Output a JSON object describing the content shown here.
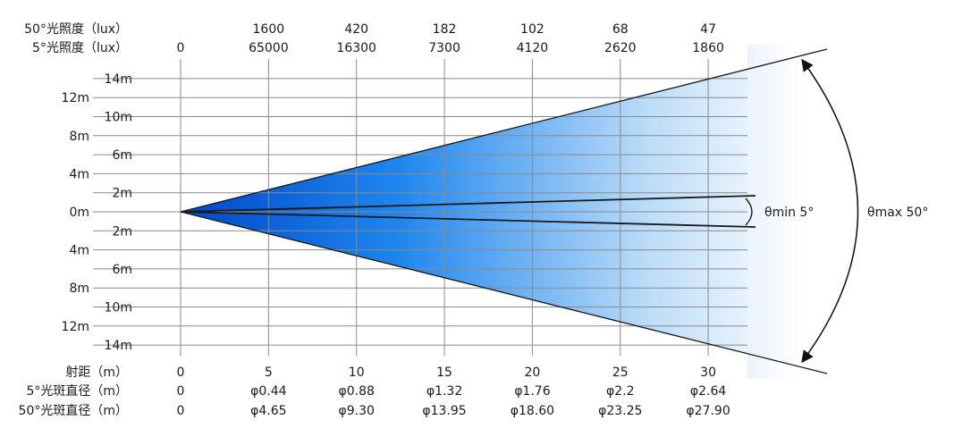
{
  "top_rows": [
    {
      "label": "50°光照度（lux）",
      "values": [
        "",
        "1600",
        "420",
        "182",
        "102",
        "68",
        "47"
      ]
    },
    {
      "label": "5°光照度（lux）",
      "values": [
        "0",
        "65000",
        "16300",
        "7300",
        "4120",
        "2620",
        "1860"
      ]
    }
  ],
  "y_ticks": [
    {
      "label": "14m",
      "value": 14
    },
    {
      "label": "12m",
      "value": 12
    },
    {
      "label": "10m",
      "value": 10
    },
    {
      "label": "8m",
      "value": 8
    },
    {
      "label": "6m",
      "value": 6
    },
    {
      "label": "4m",
      "value": 4
    },
    {
      "label": "2m",
      "value": 2
    },
    {
      "label": "0m",
      "value": 0
    },
    {
      "label": "2m",
      "value": -2
    },
    {
      "label": "4m",
      "value": -4
    },
    {
      "label": "6m",
      "value": -6
    },
    {
      "label": "8m",
      "value": -8
    },
    {
      "label": "10m",
      "value": -10
    },
    {
      "label": "12m",
      "value": -12
    },
    {
      "label": "14m",
      "value": -14
    }
  ],
  "bottom_rows": [
    {
      "label": "射距（m）",
      "values": [
        "0",
        "5",
        "10",
        "15",
        "20",
        "25",
        "30"
      ]
    },
    {
      "label": "5°光斑直径（m）",
      "values": [
        "0",
        "φ0.44",
        "φ0.88",
        "φ1.32",
        "φ1.76",
        "φ2.2",
        "φ2.64"
      ]
    },
    {
      "label": "50°光斑直径（m）",
      "values": [
        "0",
        "φ4.65",
        "φ9.30",
        "φ13.95",
        "φ18.60",
        "φ23.25",
        "φ27.90"
      ]
    }
  ],
  "distances": [
    0,
    5,
    10,
    15,
    20,
    25,
    30
  ],
  "angles": {
    "min_label": "θmin 5°",
    "max_label": "θmax 50°",
    "min_deg": 5,
    "max_deg": 50
  },
  "colors": {
    "beam_start": "#0050d0",
    "beam_mid": "#2b8ff0",
    "beam_end": "#ffffff",
    "grid": "#8a8a8a",
    "line": "#1a1a1a"
  }
}
